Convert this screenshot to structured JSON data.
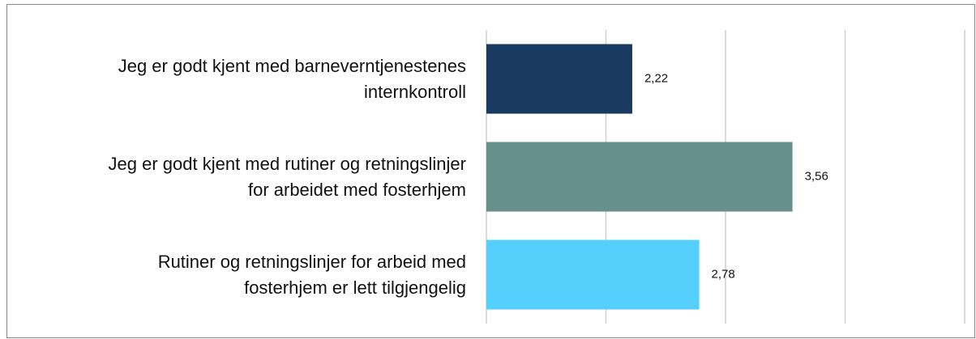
{
  "chart_data": {
    "type": "barh",
    "categories": [
      "Jeg er godt kjent med barneverntjenestenes\ninternkontroll",
      "Jeg er godt kjent med rutiner og retningslinjer\nfor arbeidet med fosterhjem",
      "Rutiner og retningslinjer for arbeid med\nfosterhjem er lett tilgjengelig"
    ],
    "values": [
      2.22,
      3.56,
      2.78
    ],
    "value_labels": [
      "2,22",
      "3,56",
      "2,78"
    ],
    "colors": [
      "#193b61",
      "#66908b",
      "#55cffb"
    ],
    "xlim": [
      1,
      5
    ],
    "xticks": [
      1,
      2,
      3,
      4,
      5
    ],
    "grid": true
  }
}
